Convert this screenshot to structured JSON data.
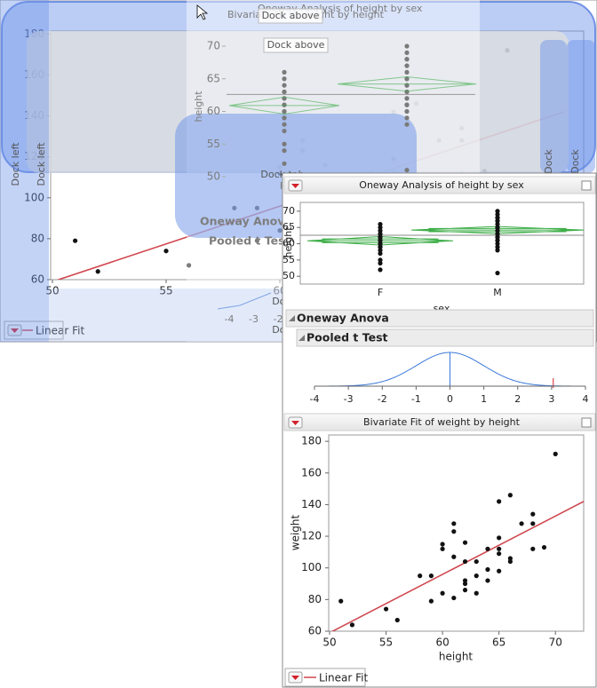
{
  "background_plot": {
    "xlim": [
      50,
      72.5
    ],
    "ylim": [
      60,
      181
    ],
    "xticks": [
      50,
      55,
      60
    ],
    "yticks": [
      60,
      80,
      100,
      120,
      140,
      160,
      180
    ],
    "button": "Linear Fit"
  },
  "dock_overlay": {
    "labels": [
      "Dock above",
      "Dock above",
      "Dock left",
      "Dock left",
      "Dock tab",
      "Dock",
      "Dock",
      "Dock",
      "Dock"
    ],
    "ghost_titles": [
      "Bivariate Fit of weight by height",
      "Oneway Analysis of height by sex",
      "Oneway Anova",
      "Pooled t Test",
      "height",
      "F"
    ],
    "ghost_yticks": [
      70,
      65,
      60,
      55,
      50
    ],
    "ghost_xticks": [
      -4,
      -3,
      -2
    ]
  },
  "oneway": {
    "title": "Oneway Analysis of height by sex",
    "y_label": "height",
    "x_label": "sex",
    "categories": [
      "F",
      "M"
    ],
    "ylim": [
      47.6,
      72.7
    ],
    "yticks": [
      50,
      55,
      60,
      65,
      70
    ],
    "values": [
      [
        52,
        54,
        55,
        57,
        58,
        59,
        59,
        60,
        60,
        61,
        61,
        62,
        62,
        63,
        63,
        64,
        65,
        66
      ],
      [
        51,
        58,
        59,
        60,
        61,
        61,
        62,
        62,
        63,
        63,
        64,
        64,
        65,
        65,
        66,
        67,
        67,
        68,
        68,
        69,
        70
      ]
    ],
    "means": [
      60.9,
      64.2
    ],
    "ci_half_widths": [
      1.3,
      1.1
    ],
    "grand_mean": 62.6,
    "color": "#3fae49"
  },
  "anova": {
    "title": "Oneway Anova"
  },
  "t_test": {
    "title": "Pooled t Test",
    "xlim": [
      -4,
      4
    ],
    "xticks": [
      -4,
      -3,
      -2,
      -1,
      0,
      1,
      2,
      3,
      4
    ],
    "t_ratio": 3.05,
    "color": "#3a78d8"
  },
  "bivariate": {
    "title": "Bivariate Fit of weight by height",
    "x_label": "height",
    "y_label": "weight",
    "xlim": [
      50,
      72.5
    ],
    "ylim": [
      60,
      184
    ],
    "xticks": [
      50,
      55,
      60,
      65,
      70
    ],
    "yticks": [
      60,
      80,
      100,
      120,
      140,
      160,
      180
    ],
    "x": [
      51,
      52,
      55,
      56,
      58,
      59,
      59,
      60,
      60,
      60,
      61,
      61,
      61,
      61,
      62,
      62,
      62,
      62,
      62,
      63,
      63,
      63,
      64,
      64,
      64,
      65,
      65,
      65,
      65,
      65,
      66,
      66,
      66,
      67,
      68,
      68,
      68,
      69,
      70
    ],
    "y": [
      79,
      64,
      74,
      67,
      95,
      95,
      79,
      115,
      112,
      84,
      128,
      123,
      107,
      81,
      116,
      104,
      92,
      90,
      86,
      104,
      95,
      84,
      112,
      99,
      92,
      142,
      119,
      112,
      109,
      98,
      146,
      106,
      104,
      128,
      134,
      128,
      112,
      113,
      172
    ],
    "fit": {
      "x": [
        50,
        72.5
      ],
      "y": [
        59,
        142
      ]
    },
    "fit_color": "#d0474f",
    "button": "Linear Fit"
  }
}
